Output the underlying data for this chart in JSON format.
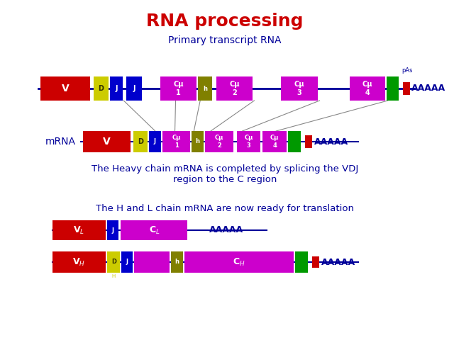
{
  "title": "RNA processing",
  "title_color": "#cc0000",
  "title_fontsize": 18,
  "bg_color": "#ffffff",
  "primary_label": "Primary transcript RNA",
  "mrna_label": "mRNA",
  "heavy_chain_text": "The Heavy chain mRNA is completed by splicing the VDJ\nregion to the C region",
  "translation_text": "The H and L chain mRNA are now ready for translation",
  "text_blue": "#000099",
  "dark_blue": "#000099",
  "red": "#cc0000",
  "yellow": "#cccc00",
  "blue": "#0000cc",
  "magenta": "#cc00cc",
  "green": "#009900",
  "olive": "#808000"
}
